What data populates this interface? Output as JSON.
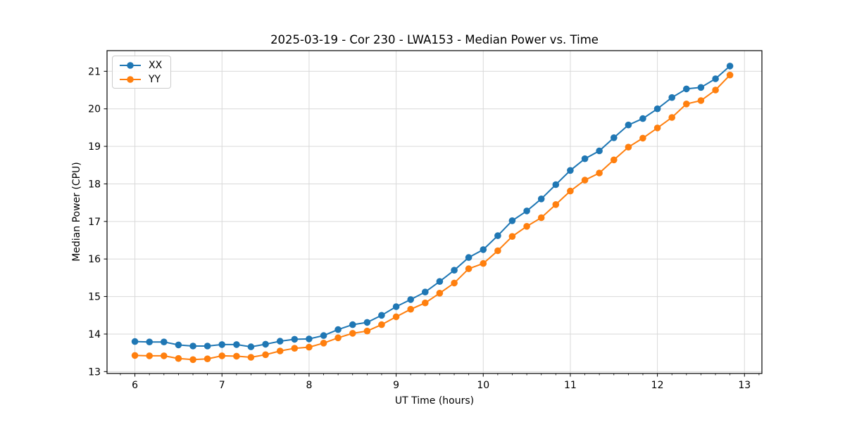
{
  "chart_data": {
    "type": "line",
    "title": "2025-03-19 - Cor 230 - LWA153 - Median Power vs. Time",
    "xlabel": "UT Time (hours)",
    "ylabel": "Median Power (CPU)",
    "xlim": [
      5.68,
      13.2
    ],
    "ylim": [
      12.95,
      21.55
    ],
    "x_ticks": [
      6,
      7,
      8,
      9,
      10,
      11,
      12,
      13
    ],
    "y_ticks": [
      13,
      14,
      15,
      16,
      17,
      18,
      19,
      20,
      21
    ],
    "x_minor_ticks_per_hour": 6,
    "grid": true,
    "grid_color": "#d9d9d9",
    "axis_color": "#000000",
    "legend_position": "upper left",
    "x": [
      6.0,
      6.167,
      6.333,
      6.5,
      6.667,
      6.833,
      7.0,
      7.167,
      7.333,
      7.5,
      7.667,
      7.833,
      8.0,
      8.167,
      8.333,
      8.5,
      8.667,
      8.833,
      9.0,
      9.167,
      9.333,
      9.5,
      9.667,
      9.833,
      10.0,
      10.167,
      10.333,
      10.5,
      10.667,
      10.833,
      11.0,
      11.167,
      11.333,
      11.5,
      11.667,
      11.833,
      12.0,
      12.167,
      12.333,
      12.5,
      12.667,
      12.833
    ],
    "series": [
      {
        "name": "XX",
        "color": "#1f77b4",
        "marker": "circle",
        "values": [
          13.8,
          13.79,
          13.79,
          13.71,
          13.68,
          13.68,
          13.72,
          13.72,
          13.66,
          13.73,
          13.81,
          13.86,
          13.87,
          13.96,
          14.12,
          14.25,
          14.31,
          14.5,
          14.73,
          14.92,
          15.12,
          15.4,
          15.7,
          16.04,
          16.25,
          16.62,
          17.02,
          17.28,
          17.6,
          17.98,
          18.36,
          18.67,
          18.88,
          19.23,
          19.57,
          19.74,
          20.0,
          20.3,
          20.53,
          20.57,
          20.8,
          21.14
        ]
      },
      {
        "name": "YY",
        "color": "#ff7f0e",
        "marker": "circle",
        "values": [
          13.43,
          13.42,
          13.42,
          13.35,
          13.32,
          13.34,
          13.42,
          13.41,
          13.38,
          13.45,
          13.55,
          13.62,
          13.65,
          13.76,
          13.9,
          14.02,
          14.08,
          14.25,
          14.46,
          14.66,
          14.83,
          15.09,
          15.36,
          15.74,
          15.88,
          16.22,
          16.6,
          16.87,
          17.1,
          17.45,
          17.81,
          18.1,
          18.29,
          18.64,
          18.98,
          19.22,
          19.49,
          19.77,
          20.13,
          20.22,
          20.5,
          20.9
        ]
      }
    ]
  }
}
